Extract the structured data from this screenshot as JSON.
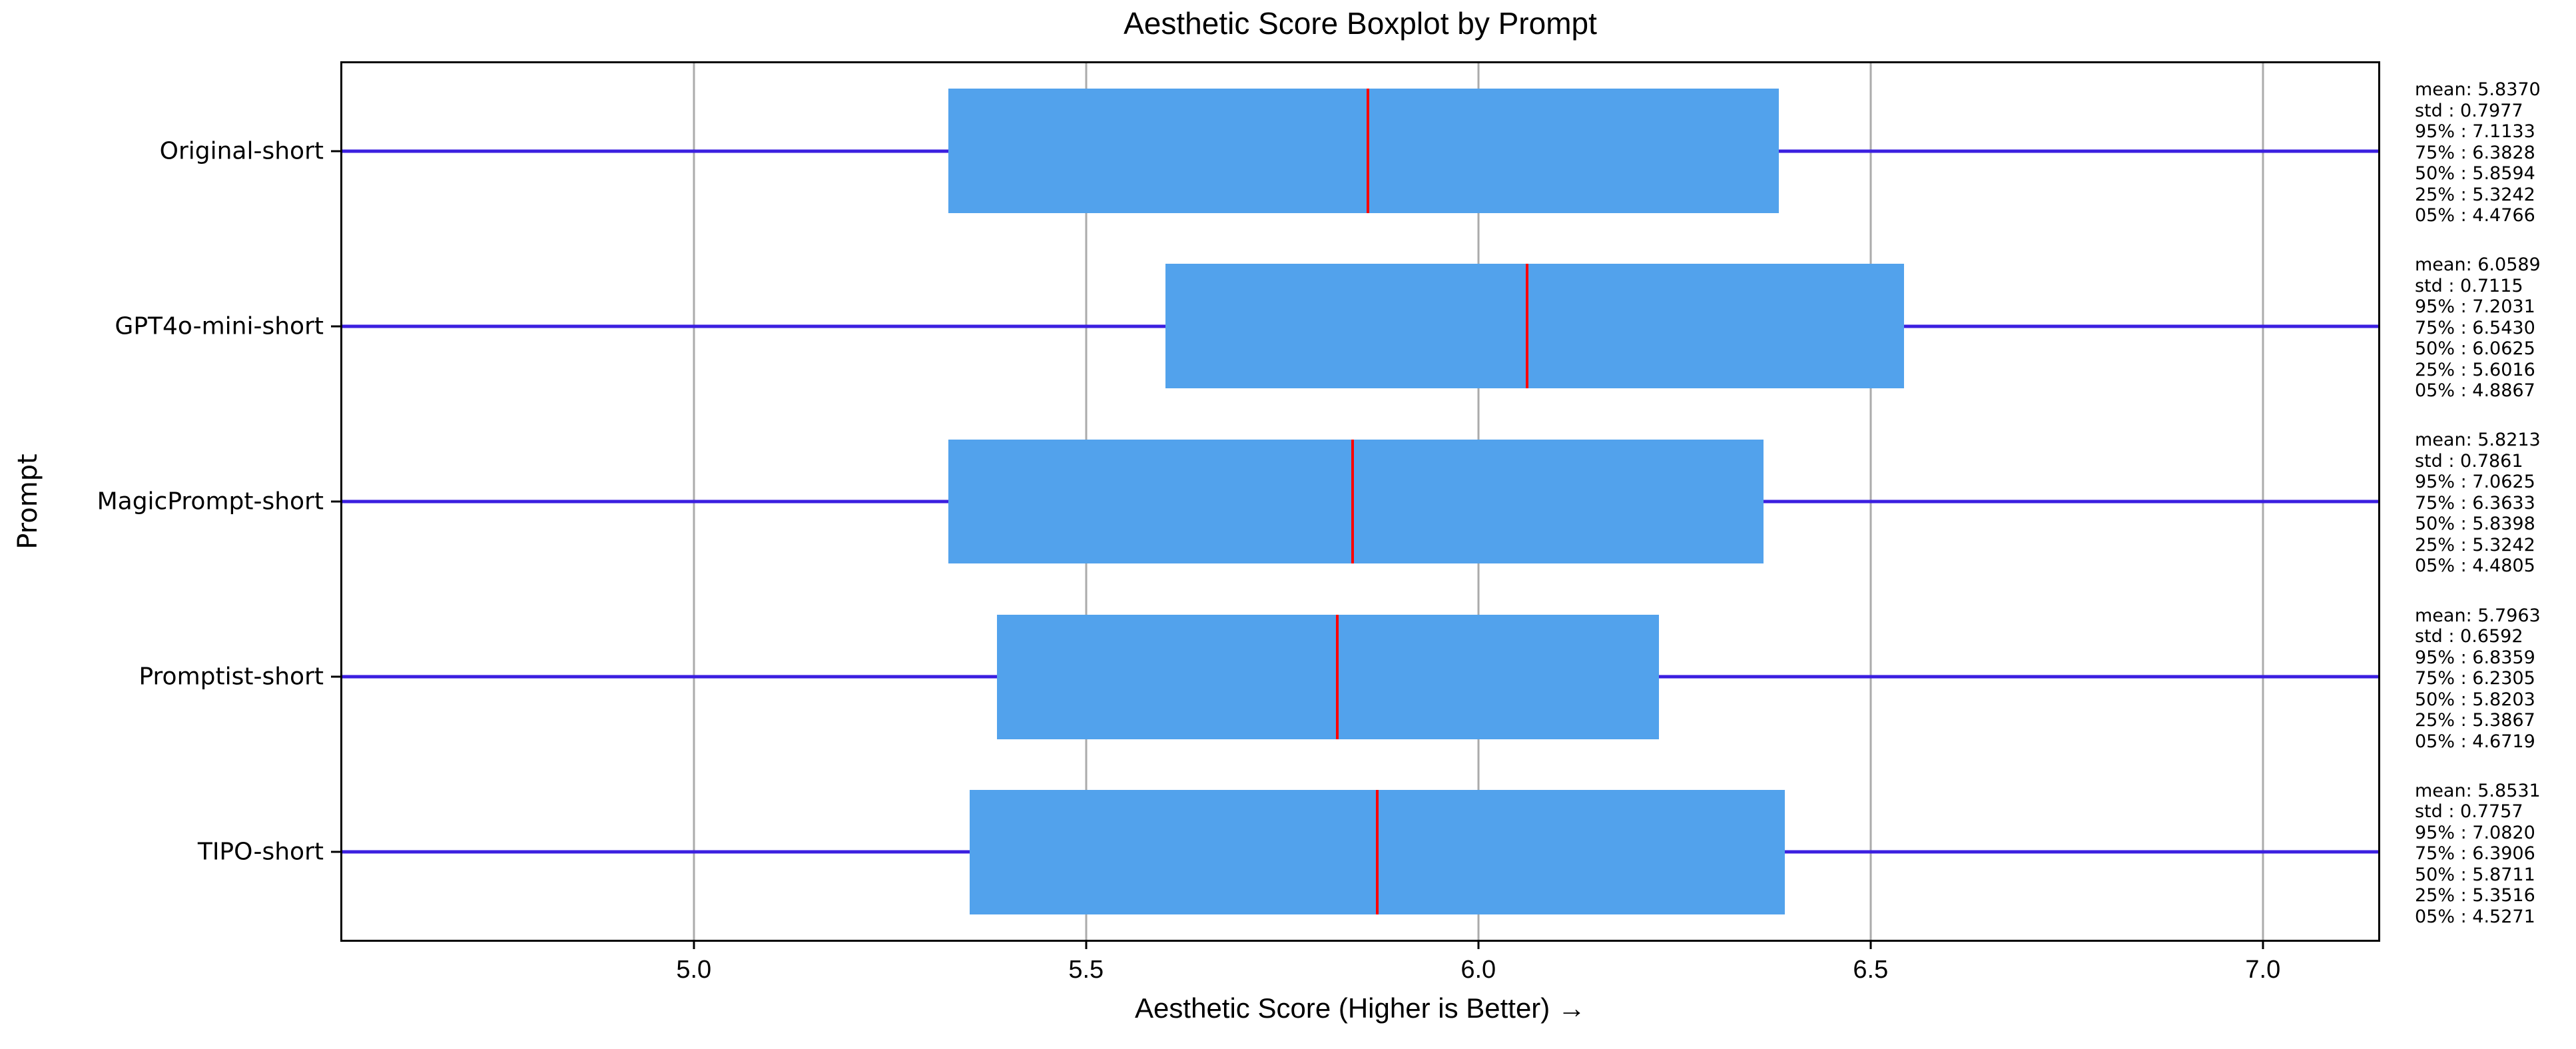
{
  "chart_data": {
    "type": "boxplot",
    "orientation": "horizontal",
    "title": "Aesthetic Score Boxplot by Prompt",
    "xlabel": "Aesthetic Score (Higher is Better) →",
    "ylabel": "Prompt",
    "xlim": [
      4.552,
      7.147
    ],
    "grid": true,
    "x_ticks": [
      {
        "value": 5.0,
        "label": "5.0"
      },
      {
        "value": 5.5,
        "label": "5.5"
      },
      {
        "value": 6.0,
        "label": "6.0"
      },
      {
        "value": 6.5,
        "label": "6.5"
      },
      {
        "value": 7.0,
        "label": "7.0"
      }
    ],
    "categories": [
      "Original-short",
      "GPT4o-mini-short",
      "MagicPrompt-short",
      "Promptist-short",
      "TIPO-short"
    ],
    "series": [
      {
        "label": "Original-short",
        "mean": "5.8370",
        "std": "0.7977",
        "p95": "7.1133",
        "p75": "6.3828",
        "p50": "5.8594",
        "p25": "5.3242",
        "p05": "4.4766"
      },
      {
        "label": "GPT4o-mini-short",
        "mean": "6.0589",
        "std": "0.7115",
        "p95": "7.2031",
        "p75": "6.5430",
        "p50": "6.0625",
        "p25": "5.6016",
        "p05": "4.8867"
      },
      {
        "label": "MagicPrompt-short",
        "mean": "5.8213",
        "std": "0.7861",
        "p95": "7.0625",
        "p75": "6.3633",
        "p50": "5.8398",
        "p25": "5.3242",
        "p05": "4.4805"
      },
      {
        "label": "Promptist-short",
        "mean": "5.7963",
        "std": "0.6592",
        "p95": "6.8359",
        "p75": "6.2305",
        "p50": "5.8203",
        "p25": "5.3867",
        "p05": "4.6719"
      },
      {
        "label": "TIPO-short",
        "mean": "5.8531",
        "std": "0.7757",
        "p95": "7.0820",
        "p75": "6.3906",
        "p50": "5.8711",
        "p25": "5.3516",
        "p05": "4.5271"
      }
    ],
    "annotation_format": [
      {
        "prefix": "mean: ",
        "key": "mean"
      },
      {
        "prefix": "std : ",
        "key": "std"
      },
      {
        "prefix": "95% : ",
        "key": "p95"
      },
      {
        "prefix": "75% : ",
        "key": "p75"
      },
      {
        "prefix": "50% : ",
        "key": "p50"
      },
      {
        "prefix": "25% : ",
        "key": "p25"
      },
      {
        "prefix": "05% : ",
        "key": "p05"
      }
    ],
    "legend": "none",
    "colors": {
      "box_fill": "#52a2ec",
      "whisker": "#3b1fe0",
      "median": "#ff0000",
      "grid": "#ababab",
      "spine": "#000000",
      "text": "#000000",
      "background": "#ffffff"
    },
    "box_width_frac": 0.71,
    "whisker_full_width": true
  }
}
